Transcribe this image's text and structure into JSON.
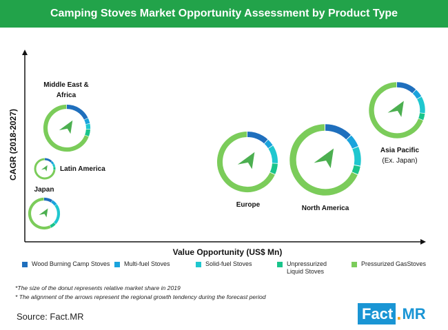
{
  "title": "Camping Stoves Market Opportunity Assessment by Product Type",
  "colors": {
    "header_bg": "#22a34a",
    "wood": "#1f6fbd",
    "multi": "#1aa3dd",
    "solid": "#1fc7cf",
    "unpressurized": "#19c48b",
    "pressurized": "#7bcc5a",
    "arrow": "#4caf50",
    "axis": "#111111"
  },
  "chart_data": {
    "type": "bubble-donut",
    "xlabel": "Value Opportunity (US$ Mn)",
    "ylabel": "CAGR (2018-2027)",
    "categories": [
      "Wood Burning Camp Stoves",
      "Multi-fuel Stoves",
      "Solid-fuel Stoves",
      "Unpressurized Liquid Stoves",
      "Pressurized GasStoves"
    ],
    "regions": [
      {
        "name": "Middle East & Africa",
        "shares": [
          0.18,
          0.04,
          0.04,
          0.05,
          0.69
        ]
      },
      {
        "name": "Latin America",
        "shares": [
          0.12,
          0.05,
          0.05,
          0.05,
          0.73
        ]
      },
      {
        "name": "Japan",
        "shares": [
          0.09,
          0.06,
          0.22,
          0.06,
          0.57
        ]
      },
      {
        "name": "Europe",
        "shares": [
          0.12,
          0.04,
          0.1,
          0.06,
          0.68
        ]
      },
      {
        "name": "North America",
        "shares": [
          0.13,
          0.06,
          0.09,
          0.04,
          0.68
        ]
      },
      {
        "name": "Asia Pacific",
        "sublabel": "(Ex. Japan)",
        "shares": [
          0.12,
          0.05,
          0.1,
          0.04,
          0.69
        ]
      }
    ]
  },
  "legend": [
    {
      "label": "Wood Burning Camp Stoves",
      "color_key": "wood"
    },
    {
      "label": "Multi-fuel Stoves",
      "color_key": "multi"
    },
    {
      "label": "Solid-fuel Stoves",
      "color_key": "solid"
    },
    {
      "label": "Unpressurized Liquid Stoves",
      "color_key": "unpressurized"
    },
    {
      "label": "Pressurized GasStoves",
      "color_key": "pressurized"
    }
  ],
  "footnotes": [
    "*The size of the donut represents relative market share in 2019",
    "*  The alignment of the arrows represent the regional growth tendency during the forecast period"
  ],
  "source": "Source: Fact.MR",
  "logo": {
    "left": "Fact",
    "dot": ".",
    "right": "MR"
  }
}
